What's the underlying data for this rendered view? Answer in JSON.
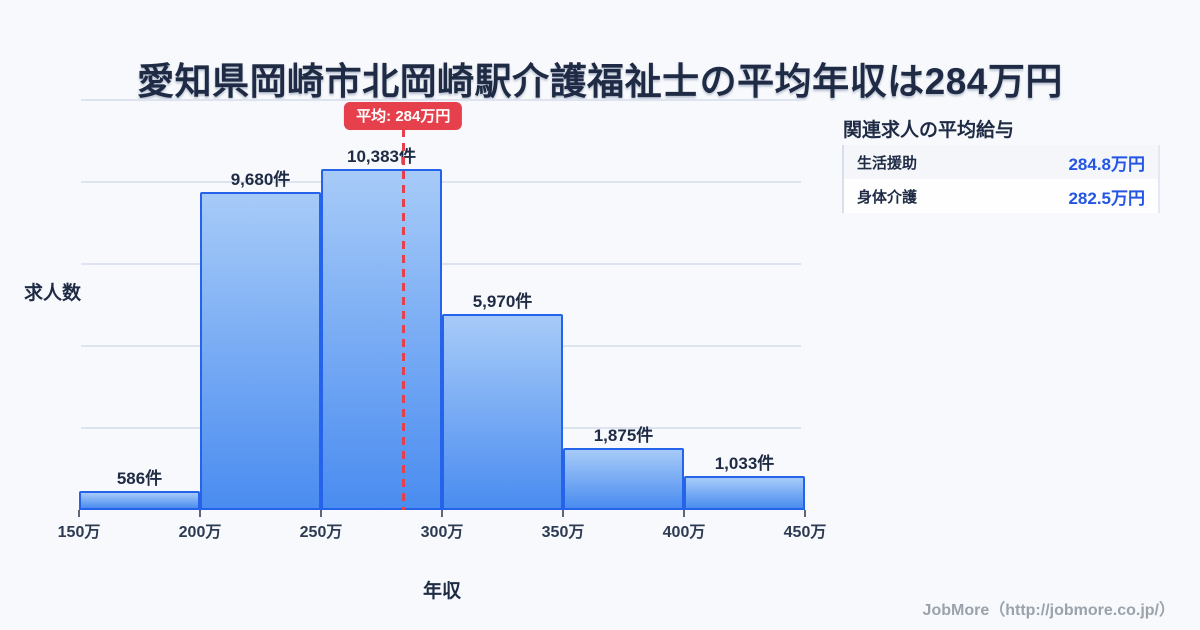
{
  "page": {
    "title": "愛知県岡崎市北岡崎駅介護福祉士の平均年収は284万円",
    "background": "#f7f9fc"
  },
  "chart_data": {
    "type": "bar",
    "title": "愛知県岡崎市北岡崎駅介護福祉士の平均年収は284万円",
    "xlabel": "年収",
    "ylabel": "求人数",
    "bin_edges_man_yen": [
      150,
      200,
      250,
      300,
      350,
      400,
      450
    ],
    "x_tick_labels": [
      "150万",
      "200万",
      "250万",
      "300万",
      "350万",
      "400万",
      "450万"
    ],
    "values": [
      586,
      9680,
      10383,
      5970,
      1875,
      1033
    ],
    "bar_labels": [
      "586件",
      "9,680件",
      "10,383件",
      "5,970件",
      "1,875件",
      "1,033件"
    ],
    "unit": "件",
    "ylim": [
      0,
      12500
    ],
    "gridline_step": 2500,
    "grid": "horizontal",
    "legend": "none",
    "average": {
      "value_man_yen": 284,
      "label": "平均: 284万円"
    },
    "colors": {
      "bar_top": "#a7cbf8",
      "bar_bottom": "#4a8cf0",
      "bar_border": "#2563eb",
      "average_red": "#e6404d",
      "gridline": "#dee4ef",
      "background": "#f7f9fc"
    }
  },
  "related_panel": {
    "title": "関連求人の平均給与",
    "rows": [
      {
        "label": "生活援助",
        "value": "284.8万円"
      },
      {
        "label": "身体介護",
        "value": "282.5万円"
      }
    ],
    "value_color": "#2456e3"
  },
  "footer": {
    "credit": "JobMore（http://jobmore.co.jp/）"
  }
}
